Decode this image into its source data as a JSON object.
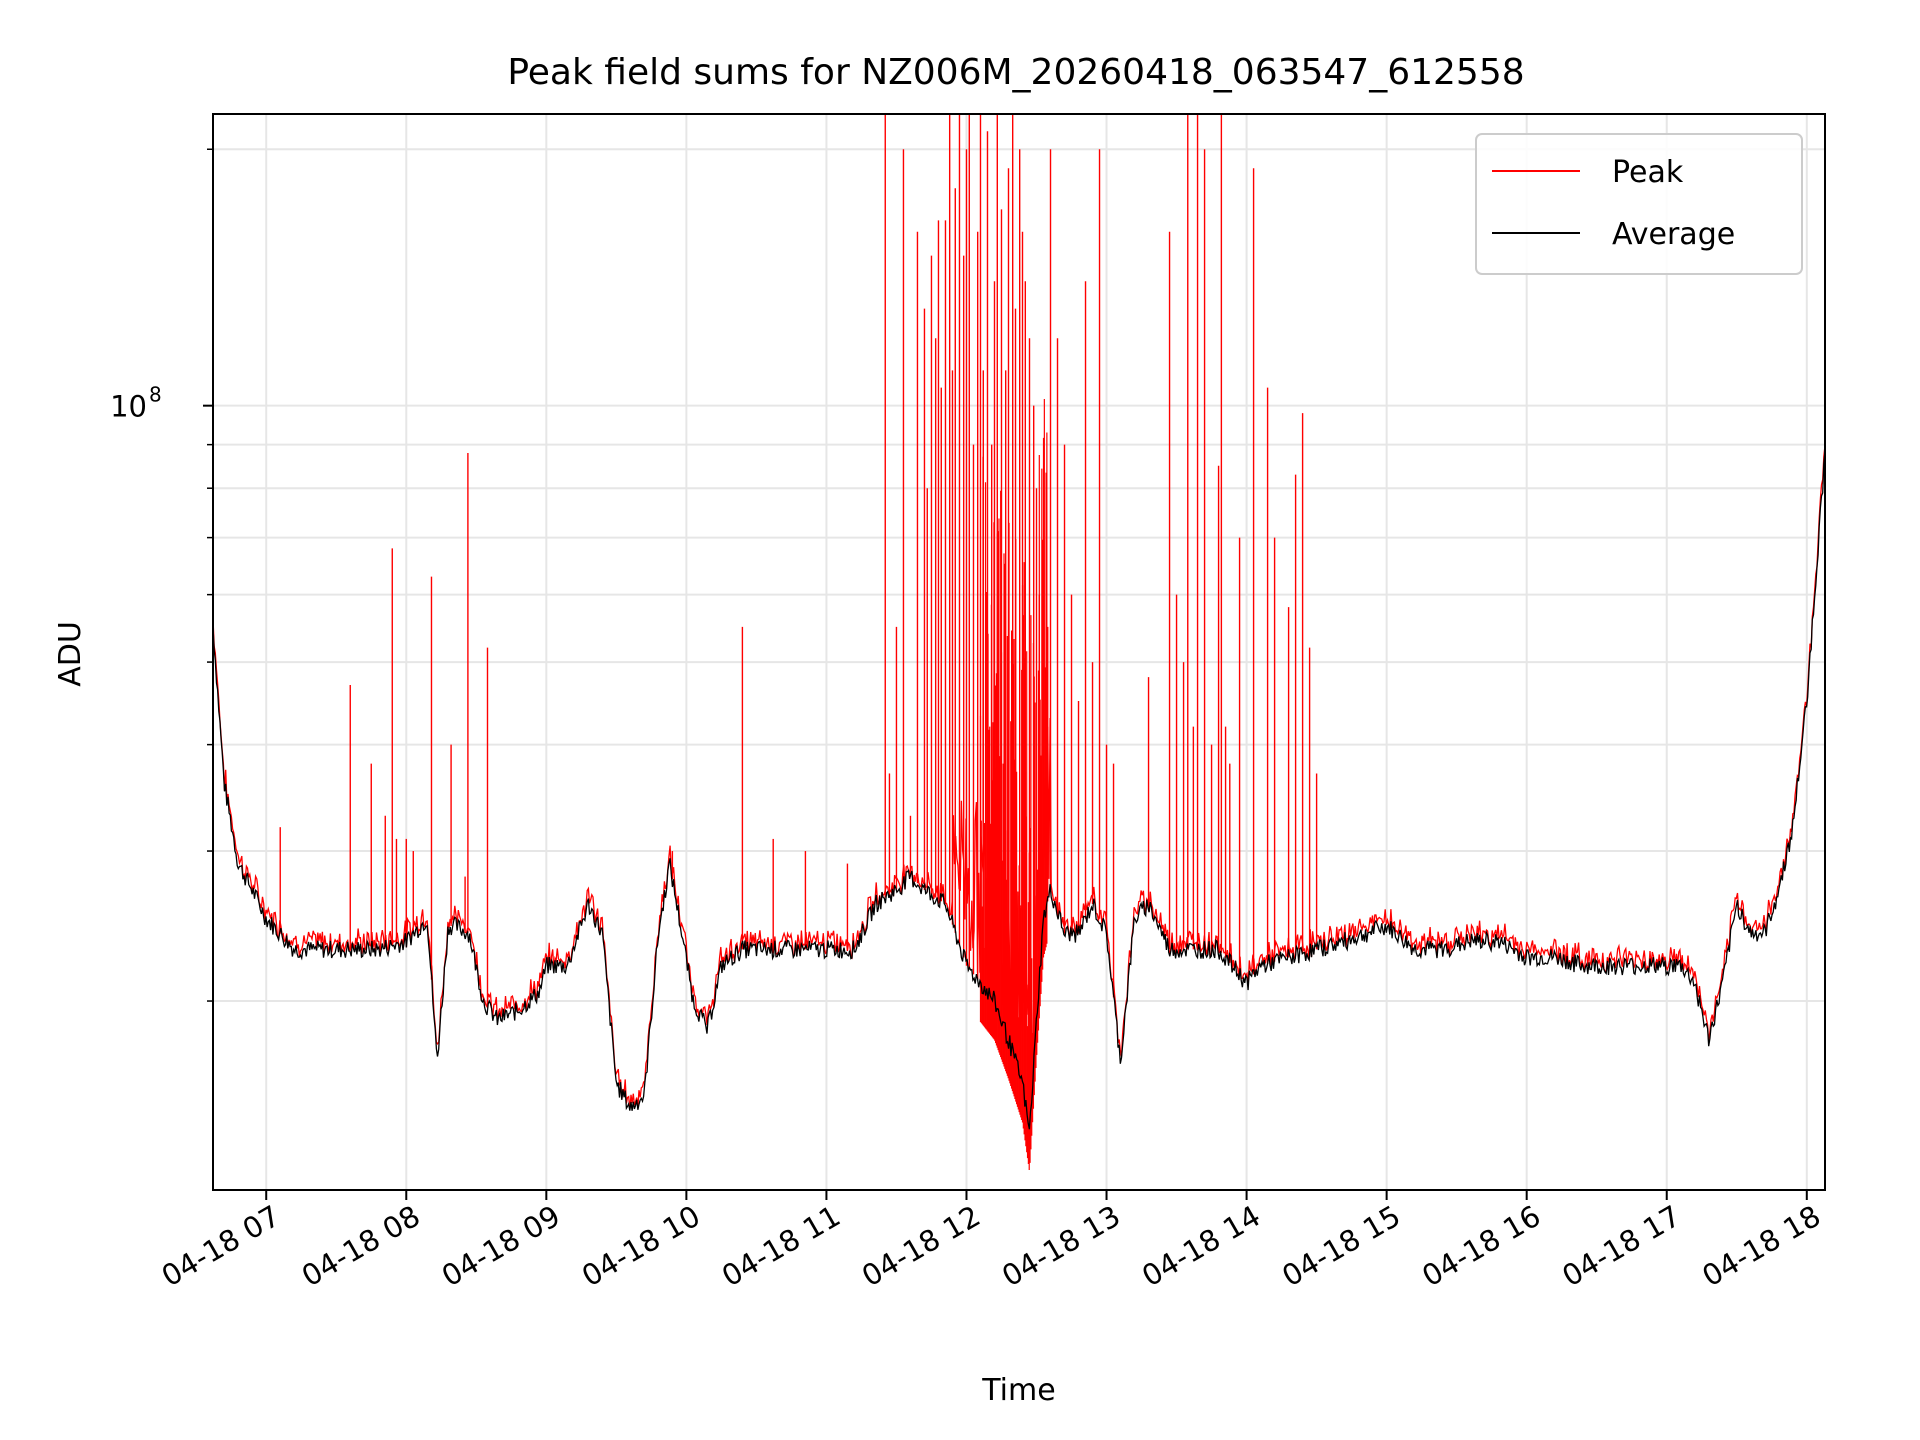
{
  "chart_data": {
    "type": "line",
    "title": "Peak field sums for NZ006M_20260418_063547_612558",
    "xlabel": "Time",
    "ylabel": "ADU",
    "yscale": "log",
    "ylim": [
      12000000,
      220000000
    ],
    "xlim_hours": [
      6.62,
      18.13
    ],
    "grid": true,
    "legend_position": "upper right",
    "x_ticks": [
      {
        "hour": 7,
        "label": "04-18 07"
      },
      {
        "hour": 8,
        "label": "04-18 08"
      },
      {
        "hour": 9,
        "label": "04-18 09"
      },
      {
        "hour": 10,
        "label": "04-18 10"
      },
      {
        "hour": 11,
        "label": "04-18 11"
      },
      {
        "hour": 12,
        "label": "04-18 12"
      },
      {
        "hour": 13,
        "label": "04-18 13"
      },
      {
        "hour": 14,
        "label": "04-18 14"
      },
      {
        "hour": 15,
        "label": "04-18 15"
      },
      {
        "hour": 16,
        "label": "04-18 16"
      },
      {
        "hour": 17,
        "label": "04-18 17"
      },
      {
        "hour": 18,
        "label": "04-18 18"
      }
    ],
    "y_major_ticks": [
      {
        "value": 100000000,
        "base": "10",
        "exp": "8"
      }
    ],
    "y_minor_ticks": [
      20000000,
      30000000,
      40000000,
      50000000,
      60000000,
      70000000,
      80000000,
      90000000,
      200000000
    ],
    "series": [
      {
        "name": "Peak",
        "color": "#ff0000"
      },
      {
        "name": "Average",
        "color": "#000000"
      }
    ],
    "average_curve": {
      "hour": [
        6.62,
        6.7,
        6.8,
        6.9,
        7.0,
        7.1,
        7.2,
        7.4,
        7.6,
        7.8,
        8.0,
        8.15,
        8.22,
        8.3,
        8.35,
        8.45,
        8.55,
        8.65,
        8.8,
        8.95,
        9.0,
        9.15,
        9.3,
        9.4,
        9.5,
        9.6,
        9.7,
        9.8,
        9.88,
        9.95,
        10.05,
        10.15,
        10.25,
        10.4,
        10.6,
        10.8,
        11.0,
        11.2,
        11.35,
        11.5,
        11.6,
        11.7,
        11.85,
        12.0,
        12.1,
        12.2,
        12.3,
        12.4,
        12.45,
        12.5,
        12.55,
        12.6,
        12.7,
        12.8,
        12.9,
        13.0,
        13.1,
        13.2,
        13.3,
        13.45,
        13.6,
        13.8,
        14.0,
        14.1,
        14.3,
        14.5,
        14.7,
        15.0,
        15.2,
        15.4,
        15.6,
        15.8,
        16.0,
        16.2,
        16.4,
        16.6,
        16.8,
        17.0,
        17.1,
        17.2,
        17.3,
        17.4,
        17.5,
        17.6,
        17.7,
        17.8,
        17.9,
        18.0,
        18.13
      ],
      "value": [
        55000000,
        36000000,
        29000000,
        27000000,
        25000000,
        24000000,
        23000000,
        23000000,
        23000000,
        23000000,
        23500000,
        25000000,
        17000000,
        24500000,
        24500000,
        24000000,
        20000000,
        19000000,
        19500000,
        20500000,
        22000000,
        22000000,
        26000000,
        24000000,
        16000000,
        15000000,
        15500000,
        24000000,
        29000000,
        25000000,
        20000000,
        18500000,
        22000000,
        23000000,
        23000000,
        23000000,
        23000000,
        23000000,
        26000000,
        27000000,
        28000000,
        27000000,
        26000000,
        22000000,
        21000000,
        20000000,
        18000000,
        16000000,
        14000000,
        19000000,
        25000000,
        27000000,
        24000000,
        24000000,
        26000000,
        24000000,
        17000000,
        25000000,
        26000000,
        23000000,
        23000000,
        23000000,
        21000000,
        22000000,
        22500000,
        23000000,
        23500000,
        24500000,
        23000000,
        23000000,
        23500000,
        23500000,
        22500000,
        22500000,
        22000000,
        22000000,
        22000000,
        22000000,
        22000000,
        21000000,
        18000000,
        21000000,
        26000000,
        24000000,
        24000000,
        27000000,
        32000000,
        45000000,
        88000000
      ]
    },
    "peak_spikes": {
      "hour": [
        7.1,
        7.6,
        7.75,
        7.85,
        7.9,
        7.93,
        8.0,
        8.05,
        8.18,
        8.32,
        8.42,
        8.44,
        8.58,
        9.9,
        10.4,
        10.62,
        10.85,
        11.15,
        11.42,
        11.45,
        11.5,
        11.55,
        11.6,
        11.65,
        11.7,
        11.72,
        11.75,
        11.78,
        11.8,
        11.82,
        11.85,
        11.88,
        11.9,
        11.92,
        11.95,
        11.98,
        12.0,
        12.02,
        12.05,
        12.08,
        12.1,
        12.12,
        12.15,
        12.18,
        12.2,
        12.22,
        12.25,
        12.28,
        12.3,
        12.33,
        12.35,
        12.38,
        12.4,
        12.42,
        12.45,
        12.48,
        12.5,
        12.52,
        12.55,
        12.58,
        12.6,
        12.65,
        12.7,
        12.75,
        12.8,
        12.85,
        12.9,
        12.95,
        13.0,
        13.05,
        13.3,
        13.45,
        13.5,
        13.55,
        13.58,
        13.62,
        13.65,
        13.7,
        13.75,
        13.8,
        13.82,
        13.85,
        13.88,
        13.95,
        14.05,
        14.15,
        14.2,
        14.3,
        14.35,
        14.4,
        14.45,
        14.5
      ],
      "value": [
        32000000,
        47000000,
        38000000,
        33000000,
        68000000,
        31000000,
        31000000,
        30000000,
        63000000,
        40000000,
        28000000,
        88000000,
        52000000,
        30000000,
        55000000,
        31000000,
        30000000,
        29000000,
        220000000,
        37000000,
        55000000,
        200000000,
        33000000,
        160000000,
        130000000,
        80000000,
        150000000,
        120000000,
        165000000,
        105000000,
        165000000,
        220000000,
        110000000,
        180000000,
        220000000,
        150000000,
        200000000,
        220000000,
        90000000,
        160000000,
        220000000,
        110000000,
        210000000,
        90000000,
        140000000,
        220000000,
        170000000,
        110000000,
        190000000,
        220000000,
        130000000,
        200000000,
        160000000,
        140000000,
        120000000,
        100000000,
        80000000,
        60000000,
        40000000,
        55000000,
        200000000,
        120000000,
        90000000,
        60000000,
        45000000,
        140000000,
        50000000,
        200000000,
        40000000,
        38000000,
        48000000,
        160000000,
        60000000,
        50000000,
        220000000,
        42000000,
        220000000,
        200000000,
        40000000,
        85000000,
        220000000,
        42000000,
        38000000,
        70000000,
        190000000,
        105000000,
        70000000,
        58000000,
        83000000,
        98000000,
        52000000,
        37000000
      ]
    }
  }
}
